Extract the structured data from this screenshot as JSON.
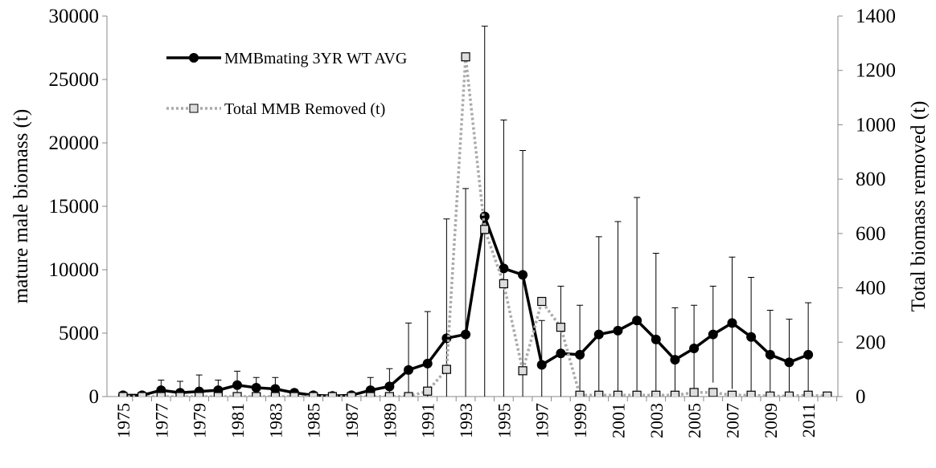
{
  "chart_data": {
    "type": "line",
    "ylabel": "mature male biomass (t)",
    "y2label": "Total biomass removed (t)",
    "categories": [
      "1975",
      null,
      "1977",
      null,
      "1979",
      null,
      "1981",
      null,
      "1983",
      null,
      "1985",
      null,
      "1987",
      null,
      "1989",
      null,
      "1991",
      null,
      "1993",
      null,
      "1995",
      null,
      "1997",
      null,
      "1999",
      null,
      "2001",
      null,
      "2003",
      null,
      "2005",
      null,
      "2007",
      null,
      "2009",
      null,
      "2011",
      null
    ],
    "ylim": [
      0,
      30000
    ],
    "yticks": [
      0,
      5000,
      10000,
      15000,
      20000,
      25000,
      30000
    ],
    "y2lim": [
      0,
      1400
    ],
    "y2ticks": [
      0,
      200,
      400,
      600,
      800,
      1000,
      1200,
      1400
    ],
    "series": [
      {
        "name": "MMBmating 3YR WT AVG",
        "color": "#000000",
        "values": [
          100,
          100,
          500,
          300,
          400,
          500,
          900,
          700,
          600,
          300,
          100,
          50,
          100,
          500,
          800,
          2100,
          2600,
          4600,
          4900,
          14200,
          10100,
          9600,
          2500,
          3400,
          3300,
          4900,
          5200,
          6000,
          4500,
          2900,
          3800,
          4900,
          5800,
          4700,
          3300,
          2700,
          3300,
          null
        ],
        "errors": [
          200,
          100,
          800,
          900,
          1300,
          800,
          1100,
          800,
          900,
          200,
          100,
          50,
          100,
          1000,
          1400,
          3700,
          4100,
          9400,
          11500,
          15000,
          11700,
          9800,
          3500,
          5300,
          3900,
          7700,
          8600,
          9700,
          6800,
          4100,
          3400,
          3800,
          5200,
          4700,
          3500,
          3400,
          4100,
          null
        ]
      },
      {
        "name": "Total MMB Removed (t)",
        "color": "#aaaaaa",
        "axis": "y2",
        "values": [
          0,
          0,
          0,
          0,
          0,
          0,
          0,
          0,
          0,
          0,
          0,
          0,
          0,
          0,
          0,
          0,
          20,
          100,
          1250,
          615,
          415,
          95,
          350,
          255,
          5,
          5,
          5,
          5,
          5,
          5,
          15,
          15,
          5,
          5,
          2,
          2,
          5,
          2
        ]
      }
    ]
  }
}
